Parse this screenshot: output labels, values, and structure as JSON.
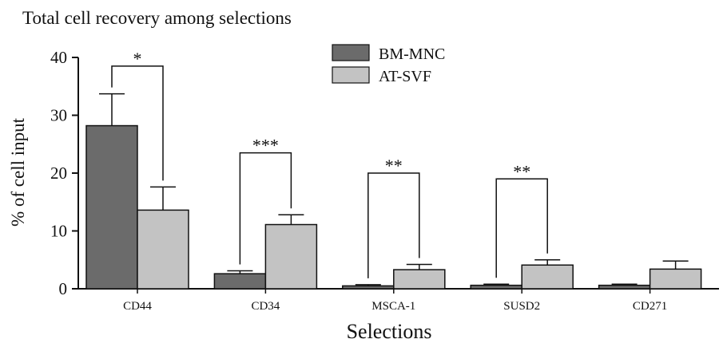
{
  "chart_data": {
    "type": "bar",
    "title": "Total cell recovery among selections",
    "xlabel": "Selections",
    "ylabel": "% of cell input",
    "ylim": [
      0,
      40
    ],
    "yticks": [
      0,
      10,
      20,
      30,
      40
    ],
    "grid": false,
    "legend_position": "top-center",
    "categories": [
      "CD44",
      "CD34",
      "MSCA-1",
      "SUSD2",
      "CD271"
    ],
    "series": [
      {
        "name": "BM-MNC",
        "color": "#6b6b6b",
        "values": [
          28.2,
          2.6,
          0.5,
          0.6,
          0.6
        ],
        "error": [
          5.5,
          0.5,
          0.2,
          0.2,
          0.2
        ]
      },
      {
        "name": "AT-SVF",
        "color": "#c3c3c3",
        "values": [
          13.6,
          11.1,
          3.3,
          4.1,
          3.4
        ],
        "error": [
          4.0,
          1.7,
          0.9,
          0.9,
          1.4
        ]
      }
    ],
    "significance": [
      {
        "category": "CD44",
        "label": "*",
        "bar_top": 38.5
      },
      {
        "category": "CD34",
        "label": "***",
        "bar_top": 23.5
      },
      {
        "category": "MSCA-1",
        "label": "**",
        "bar_top": 20.0
      },
      {
        "category": "SUSD2",
        "label": "**",
        "bar_top": 19.0
      }
    ]
  }
}
